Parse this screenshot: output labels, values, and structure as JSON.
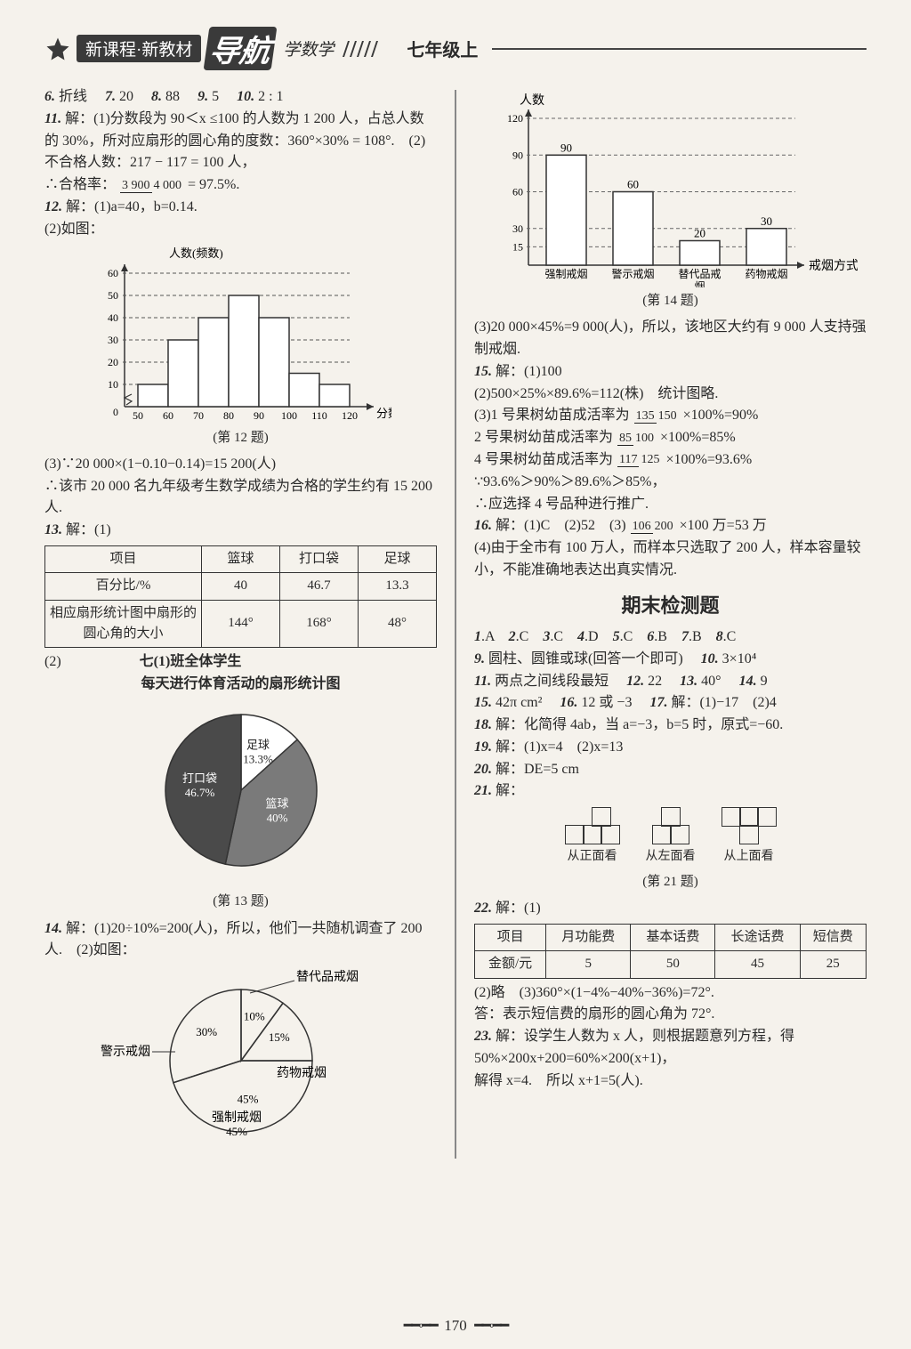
{
  "header": {
    "pill": "新课程·新教材",
    "script": "导航",
    "sub": "学数学",
    "grade": "七年级上"
  },
  "left": {
    "l1a": "6.",
    "l1b": "折线",
    "l1c": "7.",
    "l1d": "20",
    "l1e": "8.",
    "l1f": "88",
    "l1g": "9.",
    "l1h": "5",
    "l1i": "10.",
    "l1j": "2 : 1",
    "q11_a": "11.",
    "q11_b": "解：(1)分数段为 90＜x ≤100 的人数为 1 200 人，占总人数的 30%，所对应扇形的圆心角的度数：360°×30% = 108°.　(2)不合格人数：217 − 117 = 100 人，",
    "q11_c": "∴合格率：",
    "q11_frac_n": "3 900",
    "q11_frac_d": "4 000",
    "q11_d": "= 97.5%.",
    "q12_a": "12.",
    "q12_b": "解：(1)a=40，b=0.14.",
    "q12_c": "(2)如图：",
    "hist12": {
      "ylabel": "人数(频数)",
      "xlabel": "分数",
      "ylim": [
        0,
        60
      ],
      "ytick": [
        10,
        20,
        30,
        40,
        50,
        60
      ],
      "xvals": [
        50,
        60,
        70,
        80,
        90,
        100,
        110,
        120
      ],
      "bars": [
        10,
        30,
        40,
        50,
        40,
        15,
        10
      ],
      "bar_color": "#ffffff",
      "line_color": "#333333",
      "grid_color": "#555555"
    },
    "cap12": "(第 12 题)",
    "q12_d": "(3)∵20 000×(1−0.10−0.14)=15 200(人)",
    "q12_e": "∴该市 20 000 名九年级考生数学成绩为合格的学生约有 15 200 人.",
    "q13_a": "13.",
    "q13_b": "解：(1)",
    "tb13": {
      "headers": [
        "项目",
        "篮球",
        "打口袋",
        "足球"
      ],
      "rows": [
        [
          "百分比/%",
          "40",
          "46.7",
          "13.3"
        ],
        [
          "相应扇形统计图中扇形的圆心角的大小",
          "144°",
          "168°",
          "48°"
        ]
      ],
      "col_widths": [
        "40%",
        "20%",
        "20%",
        "20%"
      ]
    },
    "q13_c": "(2)",
    "pie13_title1": "七(1)班全体学生",
    "pie13_title2": "每天进行体育活动的扇形统计图",
    "pie13": {
      "slices": [
        {
          "label": "足球",
          "pct": "13.3%",
          "color": "#ffffff",
          "angle": 48
        },
        {
          "label": "篮球",
          "pct": "40%",
          "color": "#7a7a7a",
          "angle": 144
        },
        {
          "label": "打口袋",
          "pct": "46.7%",
          "color": "#4a4a4a",
          "angle": 168
        }
      ],
      "radius": 85
    },
    "cap13": "(第 13 题)",
    "q14_a": "14.",
    "q14_b": "解：(1)20÷10%=200(人)，所以，他们一共随机调查了 200 人.　(2)如图：",
    "pie14": {
      "slices": [
        {
          "label": "替代品戒烟",
          "pct": "10%",
          "angle": 36,
          "color": "#ffffff"
        },
        {
          "label": "药物戒烟",
          "pct": "15%",
          "angle": 54,
          "color": "#ffffff"
        },
        {
          "label": "强制戒烟",
          "pct": "45%",
          "angle": 162,
          "color": "#ffffff"
        },
        {
          "label": "警示戒烟",
          "pct": "30%",
          "angle": 108,
          "color": "#ffffff"
        }
      ],
      "radius": 80
    }
  },
  "right": {
    "bar14": {
      "ylabel": "人数",
      "xlabel": "戒烟方式",
      "ylim": [
        0,
        120
      ],
      "ytick": [
        15,
        30,
        60,
        90,
        120
      ],
      "cats": [
        "强制戒烟",
        "警示戒烟",
        "替代品戒烟",
        "药物戒烟"
      ],
      "vals": [
        90,
        60,
        20,
        30
      ],
      "val_labels": [
        "90",
        "60",
        "20",
        "30"
      ],
      "bar_color": "#ffffff",
      "line_color": "#333333"
    },
    "cap14": "(第 14 题)",
    "q14c": "(3)20 000×45%=9 000(人)，所以，该地区大约有 9 000 人支持强制戒烟.",
    "q15_a": "15.",
    "q15_b": "解：(1)100",
    "q15_c": "(2)500×25%×89.6%=112(株)　统计图略.",
    "q15_d1": "(3)1 号果树幼苗成活率为",
    "q15_d1n": "135",
    "q15_d1d": "150",
    "q15_d1e": "×100%=90%",
    "q15_d2": "2 号果树幼苗成活率为",
    "q15_d2n": "85",
    "q15_d2d": "100",
    "q15_d2e": "×100%=85%",
    "q15_d3": "4 号果树幼苗成活率为",
    "q15_d3n": "117",
    "q15_d3d": "125",
    "q15_d3e": "×100%=93.6%",
    "q15_e": "∵93.6%＞90%＞89.6%＞85%，",
    "q15_f": "∴应选择 4 号品种进行推广.",
    "q16_a": "16.",
    "q16_b": "解：(1)C　(2)52　(3)",
    "q16_n": "106",
    "q16_d": "200",
    "q16_c": "×100 万=53 万",
    "q16_d2": "(4)由于全市有 100 万人，而样本只选取了 200 人，样本容量较小，不能准确地表达出真实情况.",
    "final_head": "期末检测题",
    "f_row1": "1.A　2.C　3.C　4.D　5.C　6.B　7.B　8.C",
    "f9a": "9.",
    "f9b": "圆柱、圆锥或球(回答一个即可)",
    "f10a": "10.",
    "f10b": "3×10⁴",
    "f11a": "11.",
    "f11b": "两点之间线段最短",
    "f12a": "12.",
    "f12b": "22",
    "f13a": "13.",
    "f13b": "40°",
    "f14a": "14.",
    "f14b": "9",
    "f15a": "15.",
    "f15b": "42π cm²",
    "f16a": "16.",
    "f16b": "12 或 −3",
    "f17a": "17.",
    "f17b": "解：(1)−17　(2)4",
    "f18a": "18.",
    "f18b": "解：化简得 4ab，当 a=−3，b=5 时，原式=−60.",
    "f19a": "19.",
    "f19b": "解：(1)x=4　(2)x=13",
    "f20a": "20.",
    "f20b": "解：DE=5 cm",
    "f21a": "21.",
    "f21b": "解：",
    "ortho_labels": [
      "从正面看",
      "从左面看",
      "从上面看"
    ],
    "cap21": "(第 21 题)",
    "f22a": "22.",
    "f22b": "解：(1)",
    "tb22": {
      "headers": [
        "项目",
        "月功能费",
        "基本话费",
        "长途话费",
        "短信费"
      ],
      "row": [
        "金额/元",
        "5",
        "50",
        "45",
        "25"
      ]
    },
    "f22c": "(2)略　(3)360°×(1−4%−40%−36%)=72°.",
    "f22d": "答：表示短信费的扇形的圆心角为 72°.",
    "f23a": "23.",
    "f23b": "解：设学生人数为 x 人，则根据题意列方程，得",
    "f23c": "50%×200x+200=60%×200(x+1)，",
    "f23d": "解得 x=4.　所以 x+1=5(人)."
  },
  "page_number": "170"
}
